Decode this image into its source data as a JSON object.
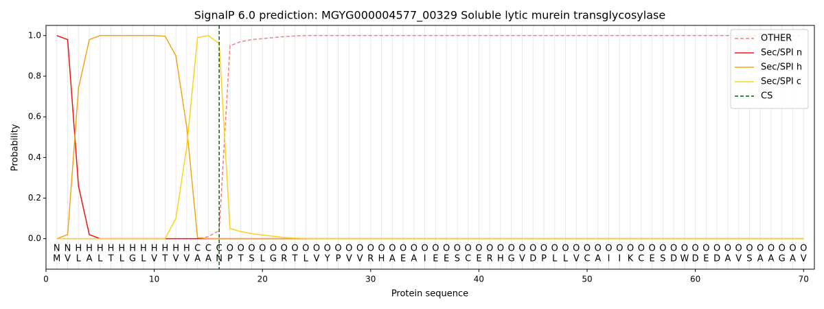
{
  "chart_data": {
    "type": "line",
    "title": "SignalP 6.0 prediction: MGYG000004577_00329 Soluble lytic murein transglycosylase",
    "xlabel": "Protein sequence",
    "ylabel": "Probability",
    "x": [
      1,
      2,
      3,
      4,
      5,
      6,
      7,
      8,
      9,
      10,
      11,
      12,
      13,
      14,
      15,
      16,
      17,
      18,
      19,
      20,
      21,
      22,
      23,
      24,
      25,
      26,
      27,
      28,
      29,
      30,
      31,
      32,
      33,
      34,
      35,
      36,
      37,
      38,
      39,
      40,
      41,
      42,
      43,
      44,
      45,
      46,
      47,
      48,
      49,
      50,
      51,
      52,
      53,
      54,
      55,
      56,
      57,
      58,
      59,
      60,
      61,
      62,
      63,
      64,
      65,
      66,
      67,
      68,
      69,
      70
    ],
    "series": [
      {
        "name": "OTHER",
        "color": "#f08080",
        "dash": true,
        "values": [
          0,
          0,
          0,
          0,
          0,
          0,
          0,
          0,
          0,
          0,
          0,
          0,
          0,
          0,
          0.01,
          0.04,
          0.95,
          0.97,
          0.98,
          0.985,
          0.99,
          0.995,
          0.998,
          1,
          1,
          1,
          1,
          1,
          1,
          1,
          1,
          1,
          1,
          1,
          1,
          1,
          1,
          1,
          1,
          1,
          1,
          1,
          1,
          1,
          1,
          1,
          1,
          1,
          1,
          1,
          1,
          1,
          1,
          1,
          1,
          1,
          1,
          1,
          1,
          1,
          1,
          1,
          1,
          1,
          1,
          1,
          1,
          1,
          1,
          1
        ]
      },
      {
        "name": "Sec/SPI n",
        "color": "#ee1111",
        "dash": false,
        "values": [
          1,
          0.98,
          0.26,
          0.02,
          0,
          0,
          0,
          0,
          0,
          0,
          0,
          0,
          0,
          0,
          0,
          0,
          0,
          0,
          0,
          0,
          0,
          0,
          0,
          0,
          0,
          0,
          0,
          0,
          0,
          0,
          0,
          0,
          0,
          0,
          0,
          0,
          0,
          0,
          0,
          0,
          0,
          0,
          0,
          0,
          0,
          0,
          0,
          0,
          0,
          0,
          0,
          0,
          0,
          0,
          0,
          0,
          0,
          0,
          0,
          0,
          0,
          0,
          0,
          0,
          0,
          0,
          0,
          0,
          0,
          0
        ]
      },
      {
        "name": "Sec/SPI h",
        "color": "#f5a316",
        "dash": false,
        "values": [
          0,
          0.02,
          0.74,
          0.98,
          1,
          1,
          1,
          1,
          1,
          1,
          0.997,
          0.9,
          0.55,
          0.005,
          0,
          0,
          0,
          0,
          0,
          0,
          0,
          0,
          0,
          0,
          0,
          0,
          0,
          0,
          0,
          0,
          0,
          0,
          0,
          0,
          0,
          0,
          0,
          0,
          0,
          0,
          0,
          0,
          0,
          0,
          0,
          0,
          0,
          0,
          0,
          0,
          0,
          0,
          0,
          0,
          0,
          0,
          0,
          0,
          0,
          0,
          0,
          0,
          0,
          0,
          0,
          0,
          0,
          0,
          0,
          0
        ]
      },
      {
        "name": "Sec/SPI c",
        "color": "#f7d31e",
        "dash": false,
        "values": [
          0,
          0,
          0,
          0,
          0,
          0,
          0,
          0,
          0,
          0,
          0,
          0.1,
          0.45,
          0.99,
          1,
          0.96,
          0.05,
          0.035,
          0.025,
          0.018,
          0.012,
          0.006,
          0.003,
          0.001,
          0,
          0,
          0,
          0,
          0,
          0,
          0,
          0,
          0,
          0,
          0,
          0,
          0,
          0,
          0,
          0,
          0,
          0,
          0,
          0,
          0,
          0,
          0,
          0,
          0,
          0,
          0,
          0,
          0,
          0,
          0,
          0,
          0,
          0,
          0,
          0,
          0,
          0,
          0,
          0,
          0,
          0,
          0,
          0,
          0,
          0
        ]
      }
    ],
    "cs": {
      "name": "CS",
      "x": 16,
      "color": "#006400"
    },
    "region_labels": [
      "N",
      "N",
      "H",
      "H",
      "H",
      "H",
      "H",
      "H",
      "H",
      "H",
      "H",
      "H",
      "H",
      "C",
      "C",
      "C",
      "O",
      "O",
      "O",
      "O",
      "O",
      "O",
      "O",
      "O",
      "O",
      "O",
      "O",
      "O",
      "O",
      "O",
      "O",
      "O",
      "O",
      "O",
      "O",
      "O",
      "O",
      "O",
      "O",
      "O",
      "O",
      "O",
      "O",
      "O",
      "O",
      "O",
      "O",
      "O",
      "O",
      "O",
      "O",
      "O",
      "O",
      "O",
      "O",
      "O",
      "O",
      "O",
      "O",
      "O",
      "O",
      "O",
      "O",
      "O",
      "O",
      "O",
      "O",
      "O",
      "O",
      "O"
    ],
    "region_colors": {
      "N": "#ee1111",
      "H": "#f5a316",
      "C": "#f7d31e",
      "O": "#808080"
    },
    "sequence": [
      "M",
      "V",
      "L",
      "A",
      "L",
      "T",
      "L",
      "G",
      "L",
      "V",
      "T",
      "V",
      "V",
      "A",
      "A",
      "N",
      "P",
      "T",
      "S",
      "L",
      "G",
      "R",
      "T",
      "L",
      "V",
      "Y",
      "P",
      "V",
      "V",
      "R",
      "H",
      "A",
      "E",
      "A",
      "I",
      "E",
      "E",
      "S",
      "C",
      "E",
      "R",
      "H",
      "G",
      "V",
      "D",
      "P",
      "L",
      "L",
      "V",
      "C",
      "A",
      "I",
      "I",
      "K",
      "C",
      "E",
      "S",
      "D",
      "W",
      "D",
      "E",
      "D",
      "A",
      "V",
      "S",
      "A",
      "A",
      "G",
      "A",
      "V"
    ],
    "xlim": [
      0,
      71
    ],
    "ylim": [
      -0.15,
      1.05
    ],
    "xticks": [
      0,
      10,
      20,
      30,
      40,
      50,
      60,
      70
    ],
    "yticks": [
      {
        "value": 0,
        "label": "0.0"
      },
      {
        "value": 0.2,
        "label": "0.2"
      },
      {
        "value": 0.4,
        "label": "0.4"
      },
      {
        "value": 0.6,
        "label": "0.6"
      },
      {
        "value": 0.8,
        "label": "0.8"
      },
      {
        "value": 1,
        "label": "1.0"
      }
    ],
    "grid": true,
    "legend": "upper right"
  }
}
